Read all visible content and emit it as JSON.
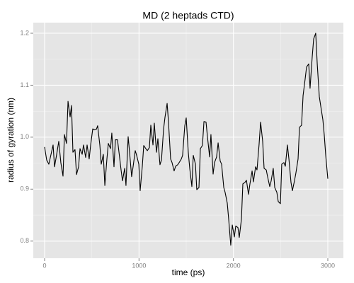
{
  "chart_data": {
    "type": "line",
    "title": "MD (2 heptads CTD)",
    "x_label": "time (ps)",
    "y_label": "radius of gyration (nm)",
    "color": "#000000",
    "grid": true,
    "xlim": [
      -120,
      3165
    ],
    "ylim": [
      0.767,
      1.2204
    ],
    "xticks": [
      0,
      1000,
      2000,
      3000
    ],
    "yticks": [
      0.8,
      0.9,
      {
        "value": 1,
        "label": "1.0"
      },
      1.1,
      1.2
    ],
    "x_minor_ticks": [
      500,
      1500,
      2500
    ],
    "y_minor_ticks": [
      0.85,
      0.95,
      1.05,
      1.15
    ],
    "x": [
      0,
      22,
      45,
      68,
      90,
      105,
      128,
      150,
      172,
      195,
      210,
      232,
      248,
      270,
      285,
      300,
      322,
      338,
      360,
      375,
      398,
      412,
      435,
      450,
      472,
      488,
      510,
      525,
      548,
      562,
      585,
      600,
      622,
      638,
      660,
      675,
      698,
      712,
      735,
      750,
      772,
      788,
      810,
      825,
      848,
      862,
      885,
      900,
      922,
      938,
      960,
      975,
      998,
      1012,
      1035,
      1050,
      1072,
      1088,
      1110,
      1125,
      1148,
      1162,
      1185,
      1200,
      1222,
      1238,
      1260,
      1275,
      1298,
      1312,
      1335,
      1350,
      1372,
      1388,
      1410,
      1425,
      1448,
      1462,
      1485,
      1500,
      1522,
      1538,
      1560,
      1575,
      1598,
      1612,
      1635,
      1650,
      1672,
      1688,
      1710,
      1725,
      1748,
      1762,
      1785,
      1800,
      1822,
      1838,
      1860,
      1875,
      1898,
      1912,
      1935,
      1950,
      1972,
      1988,
      2010,
      2025,
      2048,
      2062,
      2085,
      2100,
      2122,
      2138,
      2160,
      2175,
      2198,
      2212,
      2235,
      2250,
      2272,
      2288,
      2310,
      2325,
      2348,
      2362,
      2385,
      2400,
      2422,
      2438,
      2460,
      2475,
      2498,
      2512,
      2535,
      2550,
      2572,
      2588,
      2610,
      2625,
      2648,
      2662,
      2685,
      2700,
      2722,
      2738,
      2760,
      2775,
      2798,
      2812,
      2835,
      2850,
      2872,
      2888,
      2910,
      2925,
      2948,
      2962,
      2978,
      3000
    ],
    "y": [
      0.981,
      0.956,
      0.948,
      0.967,
      0.985,
      0.943,
      0.967,
      0.992,
      0.951,
      0.925,
      1.005,
      0.988,
      1.069,
      1.039,
      1.061,
      0.971,
      0.976,
      0.928,
      0.943,
      0.978,
      0.967,
      0.985,
      0.961,
      0.985,
      0.958,
      0.985,
      1.016,
      1.014,
      1.015,
      1.022,
      0.985,
      0.948,
      0.967,
      0.907,
      0.958,
      0.988,
      0.978,
      1.008,
      0.943,
      0.995,
      0.995,
      0.971,
      0.937,
      0.916,
      0.94,
      0.907,
      1.001,
      0.971,
      0.924,
      0.944,
      0.974,
      0.965,
      0.948,
      0.897,
      0.944,
      0.984,
      0.978,
      0.974,
      0.98,
      1.023,
      0.985,
      1.027,
      0.971,
      0.997,
      0.947,
      0.956,
      1.015,
      1.038,
      1.065,
      1.03,
      0.958,
      0.951,
      0.935,
      0.944,
      0.947,
      0.951,
      0.958,
      0.965,
      1.022,
      1.037,
      0.971,
      0.939,
      0.905,
      0.965,
      0.948,
      0.899,
      0.903,
      0.978,
      0.984,
      1.03,
      1.029,
      1.001,
      0.962,
      1.005,
      0.929,
      0.951,
      0.962,
      0.989,
      0.954,
      0.948,
      0.903,
      0.894,
      0.873,
      0.842,
      0.792,
      0.831,
      0.808,
      0.829,
      0.826,
      0.807,
      0.842,
      0.91,
      0.913,
      0.917,
      0.89,
      0.91,
      0.935,
      0.914,
      0.943,
      0.937,
      0.986,
      1.029,
      0.992,
      0.94,
      0.937,
      0.924,
      0.905,
      0.916,
      0.94,
      0.903,
      0.894,
      0.876,
      0.872,
      0.948,
      0.951,
      0.944,
      0.985,
      0.958,
      0.913,
      0.897,
      0.917,
      0.931,
      0.958,
      1.019,
      1.023,
      1.08,
      1.112,
      1.135,
      1.141,
      1.094,
      1.155,
      1.189,
      1.2,
      1.141,
      1.078,
      1.06,
      1.033,
      1.005,
      0.965,
      0.92
    ]
  }
}
